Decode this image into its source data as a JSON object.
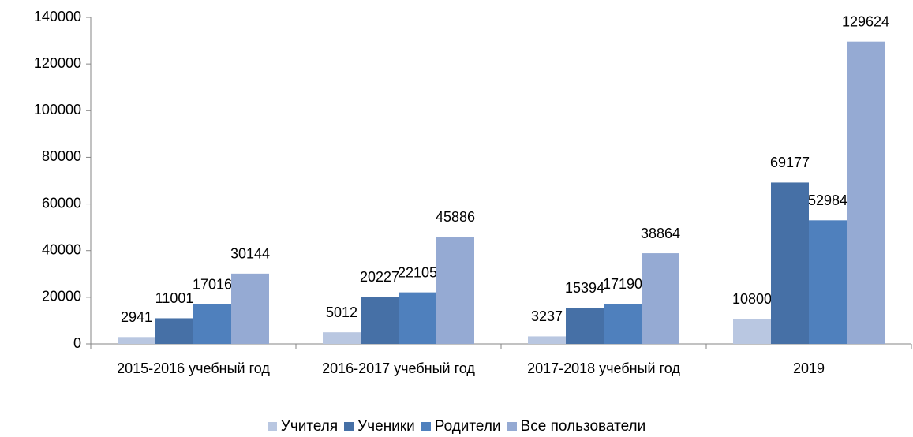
{
  "chart_data": {
    "type": "bar",
    "categories": [
      "2015-2016 учебный год",
      "2016-2017 учебный год",
      "2017-2018 учебный год",
      "2019"
    ],
    "series": [
      {
        "name": "Учителя",
        "color": "#b9c7e1",
        "values": [
          2941,
          5012,
          3237,
          10800
        ]
      },
      {
        "name": "Ученики",
        "color": "#4670a6",
        "values": [
          11001,
          20227,
          15394,
          69177
        ]
      },
      {
        "name": "Родители",
        "color": "#4f80bd",
        "values": [
          17016,
          22105,
          17190,
          52984
        ]
      },
      {
        "name": "Все пользователи",
        "color": "#95aad3",
        "values": [
          30144,
          45886,
          38864,
          129624
        ]
      }
    ],
    "ylim": [
      0,
      140000
    ],
    "yticks": [
      0,
      20000,
      40000,
      60000,
      80000,
      100000,
      120000,
      140000
    ],
    "grid": false,
    "legend": "bottom"
  }
}
